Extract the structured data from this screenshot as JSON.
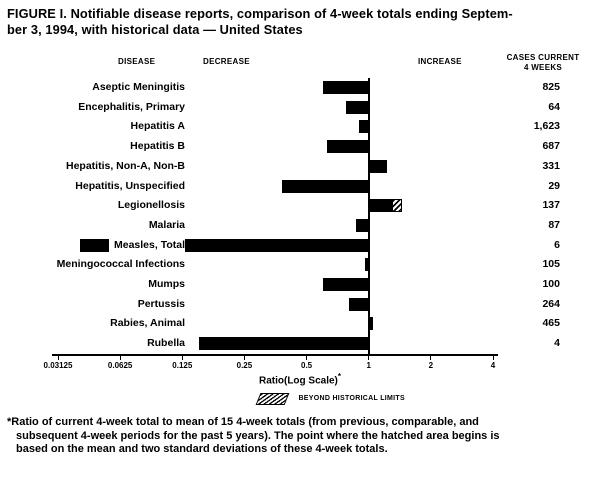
{
  "title": {
    "line1": "FIGURE I. Notifiable disease reports, comparison of 4-week totals ending Septem-",
    "line2": "ber 3, 1994, with historical data — United States"
  },
  "header": {
    "disease": "DISEASE",
    "decrease": "DECREASE",
    "increase": "INCREASE",
    "cases_line1": "CASES CURRENT",
    "cases_line2": "4 WEEKS"
  },
  "chart_data": {
    "type": "bar",
    "orientation": "horizontal",
    "scale": "log",
    "baseline": 1,
    "xlabel": "Ratio(Log Scale)",
    "xlabel_note": "*",
    "xlim": [
      0.03125,
      4
    ],
    "x_ticks": [
      0.03125,
      0.0625,
      0.125,
      0.25,
      0.5,
      1,
      2,
      4
    ],
    "x_tick_labels": [
      "0.03125",
      "0.0625",
      "0.125",
      "0.25",
      "0.5",
      "1",
      "2",
      "4"
    ],
    "legend": {
      "hatch_label": "BEYOND HISTORICAL LIMITS"
    },
    "rows": [
      {
        "disease": "Aseptic Meningitis",
        "cases": "825",
        "ratio": 0.6
      },
      {
        "disease": "Encephalitis, Primary",
        "cases": "64",
        "ratio": 0.78
      },
      {
        "disease": "Hepatitis A",
        "cases": "1,623",
        "ratio": 0.9
      },
      {
        "disease": "Hepatitis B",
        "cases": "687",
        "ratio": 0.63
      },
      {
        "disease": "Hepatitis, Non-A, Non-B",
        "cases": "331",
        "ratio": 1.22
      },
      {
        "disease": "Hepatitis, Unspecified",
        "cases": "29",
        "ratio": 0.38
      },
      {
        "disease": "Legionellosis",
        "cases": "137",
        "ratio": 1.45,
        "hatch_from": 1.3,
        "beyond_limits": true
      },
      {
        "disease": "Malaria",
        "cases": "87",
        "ratio": 0.87
      },
      {
        "disease": "Measles, Total",
        "cases": "6",
        "ratio": 0.04
      },
      {
        "disease": "Meningococcal Infections",
        "cases": "105",
        "ratio": 0.96
      },
      {
        "disease": "Mumps",
        "cases": "100",
        "ratio": 0.6
      },
      {
        "disease": "Pertussis",
        "cases": "264",
        "ratio": 0.8
      },
      {
        "disease": "Rabies, Animal",
        "cases": "465",
        "ratio": 1.05
      },
      {
        "disease": "Rubella",
        "cases": "4",
        "ratio": 0.15
      }
    ]
  },
  "footnote": {
    "lines": [
      "*Ratio of current 4-week total to mean of 15 4-week totals (from previous, comparable, and",
      "subsequent 4-week periods for the past 5 years). The point where the hatched area begins is",
      "based on the mean and two standard deviations of these 4-week totals."
    ]
  }
}
